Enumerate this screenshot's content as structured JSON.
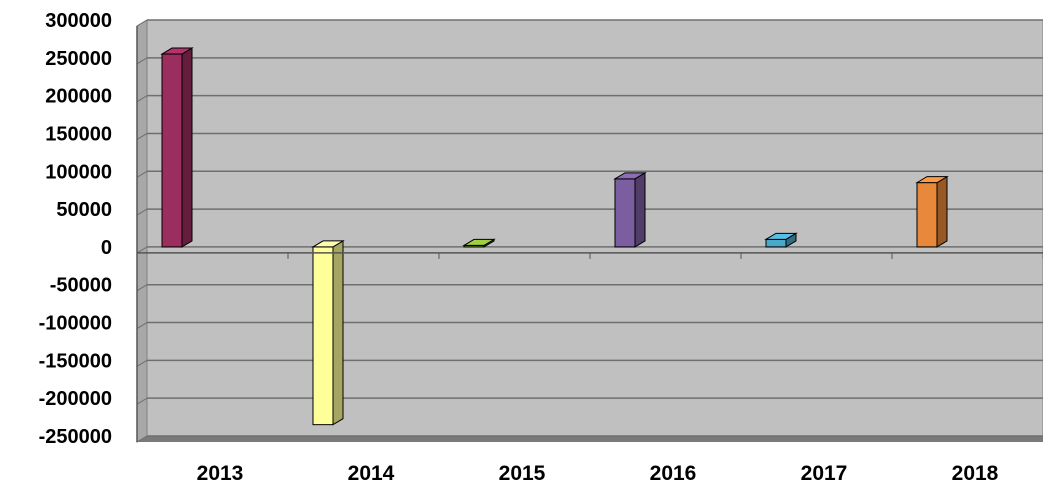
{
  "chart_data": {
    "type": "bar",
    "title": "",
    "xlabel": "",
    "ylabel": "",
    "categories": [
      "2013",
      "2014",
      "2015",
      "2016",
      "2017",
      "2018"
    ],
    "series": [
      {
        "values": [
          255000,
          -235000,
          2000,
          90000,
          10000,
          85000
        ]
      }
    ],
    "bar_colors": [
      "#9B2D5F",
      "#FFFF99",
      "#8DB33A",
      "#7B5EA0",
      "#4AA8C8",
      "#E8883A"
    ],
    "ylim": [
      -250000,
      300000
    ],
    "yticks": [
      300000,
      250000,
      200000,
      150000,
      100000,
      50000,
      0,
      -50000,
      -100000,
      -150000,
      -200000,
      -250000
    ],
    "ytick_labels": [
      "300000",
      "250000",
      "200000",
      "150000",
      "100000",
      "50000",
      "0",
      "-50000",
      "-100000",
      "-150000",
      "-200000",
      "-250000"
    ],
    "grid": true,
    "legend": "none",
    "plot_background": "#C0C0C0"
  }
}
